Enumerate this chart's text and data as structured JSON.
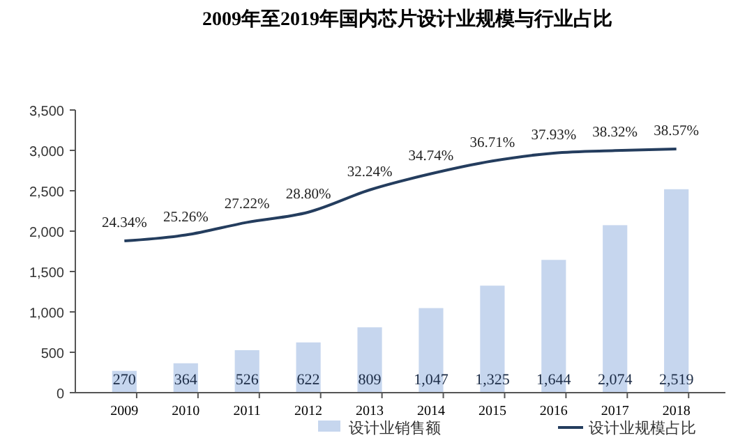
{
  "chart_data": {
    "type": "bar",
    "title": "2009年至2019年国内芯片设计业规模与行业占比",
    "categories": [
      "2009",
      "2010",
      "2011",
      "2012",
      "2013",
      "2014",
      "2015",
      "2016",
      "2017",
      "2018"
    ],
    "series": [
      {
        "name": "设计业销售额",
        "color": "#c6d6ee",
        "values": [
          270,
          364,
          526,
          622,
          809,
          1047,
          1325,
          1644,
          2074,
          2519
        ],
        "value_labels": [
          "270",
          "364",
          "526",
          "622",
          "809",
          "1,047",
          "1,325",
          "1,644",
          "2,074",
          "2,519"
        ]
      },
      {
        "name": "设计业规模占比",
        "type": "line",
        "axis": "y2",
        "color": "#243d5e",
        "values": [
          24.34,
          25.26,
          27.22,
          28.8,
          32.24,
          34.74,
          36.71,
          37.93,
          38.32,
          38.57
        ],
        "value_labels": [
          "24.34%",
          "25.26%",
          "27.22%",
          "28.80%",
          "32.24%",
          "34.74%",
          "36.71%",
          "37.93%",
          "38.32%",
          "38.57%"
        ]
      }
    ],
    "ylim": [
      0,
      3500
    ],
    "yticks": [
      {
        "value": 0,
        "label": "0"
      },
      {
        "value": 500,
        "label": "500"
      },
      {
        "value": 1000,
        "label": "1,000"
      },
      {
        "value": 1500,
        "label": "1,500"
      },
      {
        "value": 2000,
        "label": "2,000"
      },
      {
        "value": 2500,
        "label": "2,500"
      },
      {
        "value": 3000,
        "label": "3,000"
      },
      {
        "value": 3500,
        "label": "3,500"
      }
    ],
    "y2lim": [
      0.87,
      44.6
    ],
    "legend": "bottom",
    "marker": "none",
    "line_style": "solid",
    "grid": false
  }
}
